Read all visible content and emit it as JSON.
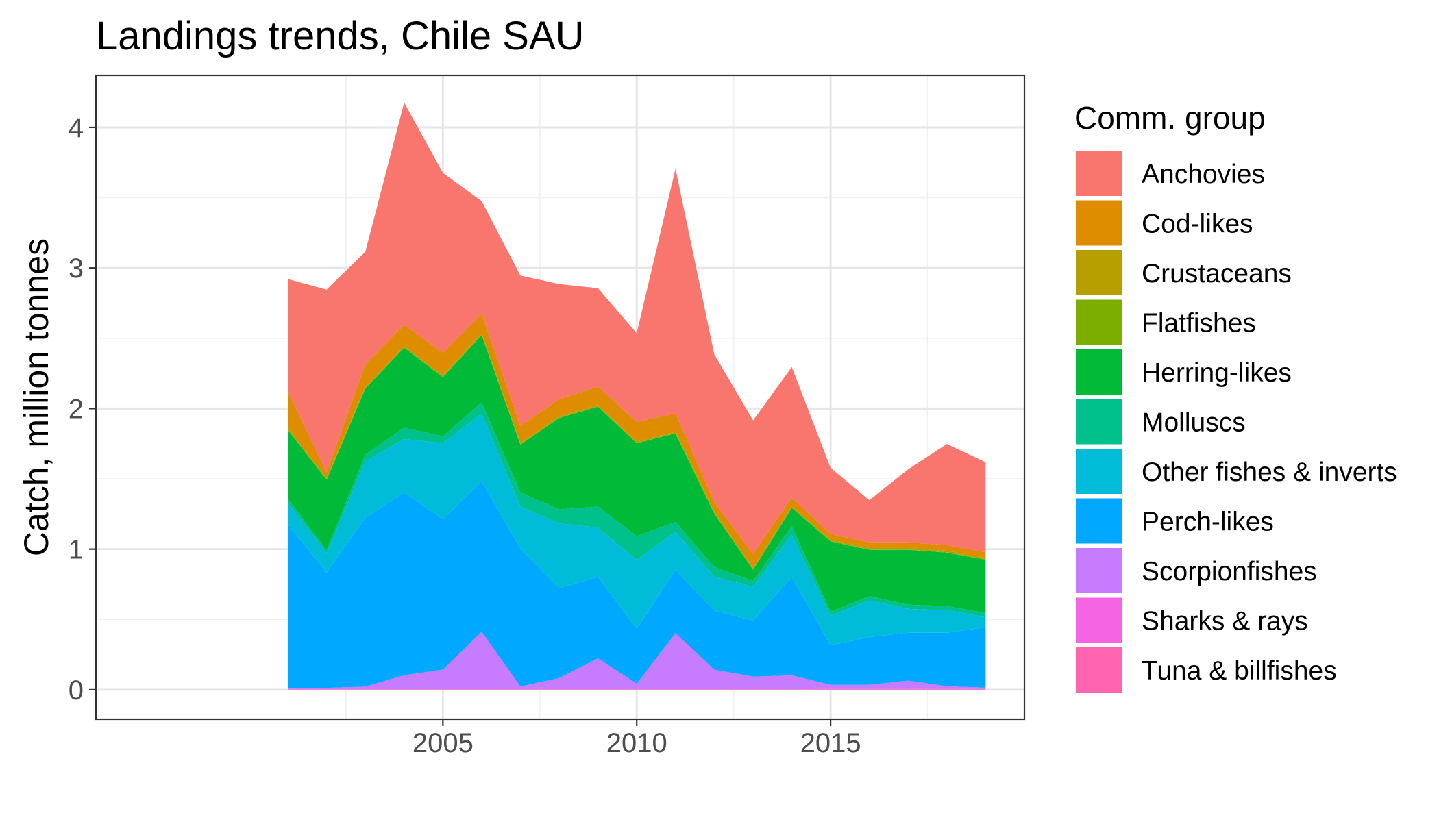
{
  "chart_data": {
    "type": "area",
    "stacked": true,
    "title": "Landings trends, Chile SAU",
    "xlabel": "",
    "ylabel": "Catch, million tonnes",
    "x": [
      2001,
      2002,
      2003,
      2004,
      2005,
      2006,
      2007,
      2008,
      2009,
      2010,
      2011,
      2012,
      2013,
      2014,
      2015,
      2016,
      2017,
      2018,
      2019
    ],
    "xlim": [
      1996.05,
      2020
    ],
    "ylim": [
      -0.21,
      4.37
    ],
    "x_ticks": [
      2005,
      2010,
      2015
    ],
    "x_tick_labels": [
      "2005",
      "2010",
      "2015"
    ],
    "y_ticks": [
      0,
      1,
      2,
      3,
      4
    ],
    "y_tick_labels": [
      "0",
      "1",
      "2",
      "3",
      "4"
    ],
    "grid": true,
    "legend": {
      "title": "Comm. group",
      "position": "right"
    },
    "series": [
      {
        "name": "Anchovies",
        "color": "#F8766D",
        "values": [
          0.8,
          1.3,
          0.8,
          1.58,
          1.28,
          0.8,
          1.07,
          0.82,
          0.7,
          0.63,
          1.74,
          1.05,
          0.95,
          0.93,
          0.47,
          0.3,
          0.52,
          0.72,
          0.64
        ]
      },
      {
        "name": "Cod-likes",
        "color": "#DE8C00",
        "values": [
          0.26,
          0.04,
          0.16,
          0.15,
          0.16,
          0.14,
          0.12,
          0.12,
          0.13,
          0.14,
          0.13,
          0.07,
          0.1,
          0.06,
          0.04,
          0.04,
          0.04,
          0.04,
          0.04
        ]
      },
      {
        "name": "Crustaceans",
        "color": "#B79F00",
        "values": [
          0.01,
          0.01,
          0.01,
          0.01,
          0.01,
          0.01,
          0.01,
          0.01,
          0.01,
          0.01,
          0.01,
          0.01,
          0.01,
          0.01,
          0.01,
          0.01,
          0.01,
          0.01,
          0.01
        ]
      },
      {
        "name": "Flatfishes",
        "color": "#7CAE00",
        "values": [
          0.003,
          0.003,
          0.003,
          0.003,
          0.003,
          0.003,
          0.003,
          0.003,
          0.003,
          0.003,
          0.003,
          0.003,
          0.003,
          0.003,
          0.003,
          0.003,
          0.003,
          0.003,
          0.003
        ]
      },
      {
        "name": "Herring-likes",
        "color": "#00BA38",
        "values": [
          0.49,
          0.5,
          0.47,
          0.57,
          0.42,
          0.48,
          0.34,
          0.65,
          0.71,
          0.66,
          0.63,
          0.38,
          0.08,
          0.13,
          0.5,
          0.33,
          0.39,
          0.38,
          0.38
        ]
      },
      {
        "name": "Molluscs",
        "color": "#00C08B",
        "values": [
          0.03,
          0.02,
          0.05,
          0.08,
          0.05,
          0.08,
          0.1,
          0.1,
          0.15,
          0.17,
          0.07,
          0.07,
          0.04,
          0.06,
          0.03,
          0.03,
          0.03,
          0.03,
          0.03
        ]
      },
      {
        "name": "Other fishes & inverts",
        "color": "#00BCD8",
        "values": [
          0.15,
          0.14,
          0.4,
          0.38,
          0.54,
          0.48,
          0.3,
          0.46,
          0.35,
          0.49,
          0.27,
          0.24,
          0.24,
          0.3,
          0.21,
          0.26,
          0.17,
          0.16,
          0.07
        ]
      },
      {
        "name": "Perch-likes",
        "color": "#00A9FF",
        "values": [
          1.17,
          0.82,
          1.2,
          1.3,
          1.07,
          1.07,
          0.98,
          0.64,
          0.58,
          0.39,
          0.45,
          0.42,
          0.4,
          0.7,
          0.28,
          0.34,
          0.34,
          0.38,
          0.43
        ]
      },
      {
        "name": "Scorpionfishes",
        "color": "#C77CFF",
        "values": [
          0.005,
          0.01,
          0.02,
          0.1,
          0.14,
          0.41,
          0.02,
          0.08,
          0.22,
          0.04,
          0.4,
          0.14,
          0.09,
          0.1,
          0.03,
          0.03,
          0.06,
          0.02,
          0.01
        ]
      },
      {
        "name": "Sharks & rays",
        "color": "#F564E3",
        "values": [
          0.001,
          0.001,
          0.001,
          0.001,
          0.001,
          0.001,
          0.001,
          0.001,
          0.001,
          0.001,
          0.001,
          0.001,
          0.001,
          0.001,
          0.001,
          0.001,
          0.001,
          0.001,
          0.001
        ]
      },
      {
        "name": "Tuna & billfishes",
        "color": "#FF64B0",
        "values": [
          0.002,
          0.002,
          0.002,
          0.002,
          0.002,
          0.002,
          0.002,
          0.002,
          0.002,
          0.002,
          0.002,
          0.002,
          0.002,
          0.002,
          0.004,
          0.004,
          0.004,
          0.004,
          0.004
        ]
      }
    ]
  }
}
